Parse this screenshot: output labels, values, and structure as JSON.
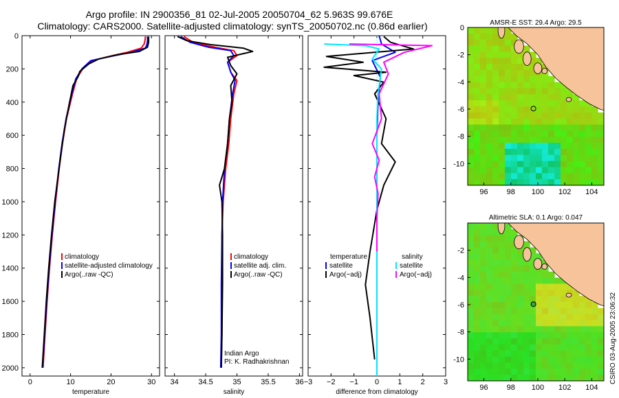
{
  "figure": {
    "title_line1": "Argo profile: IN 2900356_81 02-Jul-2005 20050704_62 5.963S 99.676E",
    "title_line2": "Climatology: CARS2000. Satellite-adjusted climatology: synTS_20050702.nc (0.86d earlier)",
    "side_label": "CSIRO 03-Aug-2005 23:06:32",
    "colors": {
      "climatology": "#ff0000",
      "satellite": "#0000ff",
      "argo": "#000000",
      "salinity_satellite": "#00e5ff",
      "salinity_argo": "#ff00ff",
      "land": "#f7c39a",
      "coast": "#000000"
    }
  },
  "chart_data": [
    {
      "id": "temperature",
      "type": "line",
      "xlabel": "temperature",
      "ylabel": "",
      "xlim": [
        -2,
        32
      ],
      "ylim": [
        2050,
        0
      ],
      "y_reversed": true,
      "xticks": [
        0,
        10,
        20,
        30
      ],
      "yticks": [
        0,
        200,
        400,
        600,
        800,
        1000,
        1200,
        1400,
        1600,
        1800,
        2000
      ],
      "legend": [
        "climatology",
        "satellite-adjusted climatology",
        "Argo(..raw -QC)"
      ],
      "legend_position": "lower-right",
      "series": [
        {
          "name": "climatology",
          "color": "#ff0000",
          "points": [
            [
              28.5,
              5
            ],
            [
              28.4,
              30
            ],
            [
              28.2,
              50
            ],
            [
              27.5,
              75
            ],
            [
              24.0,
              100
            ],
            [
              19.5,
              125
            ],
            [
              15.5,
              150
            ],
            [
              13.0,
              200
            ],
            [
              11.5,
              260
            ],
            [
              10.5,
              350
            ],
            [
              9.0,
              500
            ],
            [
              8.0,
              650
            ],
            [
              7.2,
              800
            ],
            [
              6.3,
              1000
            ],
            [
              5.5,
              1200
            ],
            [
              4.8,
              1400
            ],
            [
              4.2,
              1600
            ],
            [
              3.7,
              1800
            ],
            [
              3.2,
              2000
            ]
          ]
        },
        {
          "name": "satellite-adjusted climatology",
          "color": "#0000ff",
          "points": [
            [
              29.0,
              5
            ],
            [
              29.0,
              30
            ],
            [
              28.9,
              50
            ],
            [
              28.5,
              75
            ],
            [
              25.0,
              100
            ],
            [
              20.0,
              125
            ],
            [
              15.0,
              150
            ],
            [
              12.8,
              200
            ],
            [
              11.3,
              260
            ],
            [
              10.3,
              350
            ],
            [
              8.9,
              500
            ],
            [
              7.9,
              650
            ],
            [
              7.1,
              800
            ],
            [
              6.2,
              1000
            ],
            [
              5.4,
              1200
            ],
            [
              4.7,
              1400
            ],
            [
              4.1,
              1600
            ],
            [
              3.6,
              1800
            ],
            [
              3.1,
              2000
            ]
          ]
        },
        {
          "name": "Argo(..raw -QC)",
          "color": "#000000",
          "points": [
            [
              29.3,
              5
            ],
            [
              29.3,
              40
            ],
            [
              29.0,
              70
            ],
            [
              27.0,
              95
            ],
            [
              21.5,
              115
            ],
            [
              17.0,
              140
            ],
            [
              14.5,
              170
            ],
            [
              12.3,
              215
            ],
            [
              11.8,
              250
            ],
            [
              10.6,
              300
            ],
            [
              9.6,
              420
            ],
            [
              8.5,
              560
            ],
            [
              7.7,
              700
            ],
            [
              7.0,
              830
            ],
            [
              6.1,
              1000
            ],
            [
              5.3,
              1200
            ],
            [
              4.6,
              1400
            ],
            [
              4.0,
              1600
            ],
            [
              3.5,
              1800
            ],
            [
              3.0,
              2000
            ]
          ]
        }
      ]
    },
    {
      "id": "salinity",
      "type": "line",
      "xlabel": "salinity",
      "ylabel": "",
      "xlim": [
        33.85,
        36.05
      ],
      "ylim": [
        2050,
        0
      ],
      "y_reversed": true,
      "xticks": [
        34,
        34.5,
        35,
        35.5,
        36
      ],
      "xtick_labels": [
        "34",
        "34.5",
        "35",
        "35.5",
        "36"
      ],
      "legend": [
        "climatology",
        "satellite adj. clim.",
        "Argo(..raw -QC)"
      ],
      "legend_position": "lower-right",
      "annotation_line1": "Indian Argo",
      "annotation_line2": "PI: K. Radhakrishnan",
      "series": [
        {
          "name": "climatology",
          "color": "#ff0000",
          "points": [
            [
              34.15,
              5
            ],
            [
              34.3,
              40
            ],
            [
              34.65,
              70
            ],
            [
              34.95,
              90
            ],
            [
              35.0,
              120
            ],
            [
              34.85,
              160
            ],
            [
              34.9,
              220
            ],
            [
              35.0,
              270
            ],
            [
              34.95,
              350
            ],
            [
              34.9,
              500
            ],
            [
              34.87,
              650
            ],
            [
              34.82,
              800
            ],
            [
              34.78,
              1000
            ],
            [
              34.76,
              1200
            ],
            [
              34.76,
              1500
            ],
            [
              34.76,
              1800
            ],
            [
              34.75,
              2000
            ]
          ]
        },
        {
          "name": "satellite adj. clim.",
          "color": "#0000ff",
          "points": [
            [
              34.1,
              5
            ],
            [
              34.25,
              40
            ],
            [
              34.55,
              70
            ],
            [
              34.9,
              90
            ],
            [
              34.95,
              120
            ],
            [
              34.85,
              160
            ],
            [
              34.9,
              220
            ],
            [
              34.97,
              270
            ],
            [
              34.93,
              350
            ],
            [
              34.88,
              500
            ],
            [
              34.85,
              650
            ],
            [
              34.8,
              800
            ],
            [
              34.77,
              1000
            ],
            [
              34.76,
              1200
            ],
            [
              34.75,
              1500
            ],
            [
              34.75,
              1800
            ],
            [
              34.74,
              2000
            ]
          ]
        },
        {
          "name": "Argo(..raw -QC)",
          "color": "#000000",
          "points": [
            [
              34.05,
              5
            ],
            [
              34.2,
              30
            ],
            [
              34.6,
              55
            ],
            [
              35.1,
              75
            ],
            [
              35.25,
              95
            ],
            [
              34.85,
              130
            ],
            [
              34.9,
              180
            ],
            [
              35.0,
              230
            ],
            [
              34.9,
              300
            ],
            [
              34.92,
              400
            ],
            [
              34.88,
              500
            ],
            [
              34.85,
              650
            ],
            [
              34.8,
              800
            ],
            [
              34.72,
              900
            ],
            [
              34.76,
              1000
            ],
            [
              34.77,
              1200
            ],
            [
              34.77,
              1500
            ],
            [
              34.76,
              1800
            ],
            [
              34.75,
              2000
            ]
          ]
        }
      ]
    },
    {
      "id": "difference",
      "type": "line",
      "xlabel": "difference from climatology",
      "ylabel": "",
      "xlim": [
        -3,
        3
      ],
      "ylim": [
        2050,
        0
      ],
      "y_reversed": true,
      "xticks": [
        -3,
        -2,
        -1,
        0,
        1,
        2,
        3
      ],
      "xtick_labels": [
        "−3",
        "−2",
        "−1",
        "0",
        "1",
        "2",
        "3"
      ],
      "legend_temperature": {
        "title": "temperature",
        "items": [
          "satellite",
          "Argo(−adj)"
        ]
      },
      "legend_salinity": {
        "title": "salinity",
        "items": [
          "satellite",
          "Argo(−adj)"
        ]
      },
      "legend_position": "lower-center",
      "series": [
        {
          "name": "temperature satellite",
          "color": "#0000ff",
          "points": [
            [
              0.1,
              0
            ],
            [
              0.2,
              50
            ],
            [
              0.8,
              100
            ],
            [
              -0.2,
              150
            ],
            [
              0.15,
              250
            ],
            [
              0.05,
              400
            ],
            [
              0.0,
              600
            ],
            [
              0.0,
              1000
            ],
            [
              0.0,
              1500
            ],
            [
              0.0,
              2000
            ]
          ]
        },
        {
          "name": "temperature Argo(−adj)",
          "color": "#000000",
          "points": [
            [
              0.3,
              5
            ],
            [
              0.6,
              40
            ],
            [
              1.6,
              80
            ],
            [
              -2.2,
              125
            ],
            [
              -0.6,
              160
            ],
            [
              -2.3,
              190
            ],
            [
              0.4,
              220
            ],
            [
              -1.0,
              240
            ],
            [
              0.3,
              280
            ],
            [
              -0.1,
              350
            ],
            [
              0.4,
              500
            ],
            [
              0.2,
              650
            ],
            [
              0.8,
              760
            ],
            [
              0.3,
              900
            ],
            [
              0.0,
              1050
            ],
            [
              -0.3,
              1300
            ],
            [
              -0.5,
              1500
            ],
            [
              -0.3,
              1700
            ],
            [
              -0.1,
              1950
            ]
          ]
        },
        {
          "name": "salinity satellite",
          "color": "#00e5ff",
          "points": [
            [
              -2.3,
              50
            ],
            [
              -0.5,
              60
            ],
            [
              0.1,
              80
            ],
            [
              -0.2,
              140
            ],
            [
              0.2,
              200
            ],
            [
              0.05,
              350
            ],
            [
              0.0,
              500
            ],
            [
              0.0,
              800
            ],
            [
              0.0,
              1200
            ],
            [
              0.0,
              2050
            ]
          ]
        },
        {
          "name": "salinity Argo(−adj)",
          "color": "#ff00ff",
          "points": [
            [
              -1.2,
              50
            ],
            [
              2.4,
              60
            ],
            [
              1.2,
              100
            ],
            [
              0.3,
              160
            ],
            [
              0.5,
              230
            ],
            [
              0.1,
              350
            ],
            [
              0.2,
              500
            ],
            [
              -0.2,
              650
            ],
            [
              0.1,
              750
            ],
            [
              -0.1,
              850
            ],
            [
              0.05,
              950
            ],
            [
              0.0,
              1100
            ],
            [
              0.0,
              1300
            ]
          ]
        }
      ]
    },
    {
      "id": "sst_map",
      "type": "heatmap",
      "title": "AMSR-E SST: 29.4 Argo: 29.5",
      "xlim": [
        94.8,
        104.9
      ],
      "ylim": [
        -11.6,
        0
      ],
      "xticks": [
        96,
        98,
        100,
        102,
        104
      ],
      "yticks": [
        0,
        -2,
        -4,
        -6,
        -8,
        -10
      ],
      "argo_position": [
        99.676,
        -5.963
      ]
    },
    {
      "id": "sla_map",
      "type": "heatmap",
      "title": "Altimetric SLA: 0.1 Argo: 0.047",
      "xlim": [
        94.8,
        104.9
      ],
      "ylim": [
        -11.6,
        0
      ],
      "xticks": [
        96,
        98,
        100,
        102,
        104
      ],
      "yticks": [
        -2,
        -4,
        -6,
        -8,
        -10
      ],
      "argo_position": [
        99.676,
        -5.963
      ]
    }
  ]
}
